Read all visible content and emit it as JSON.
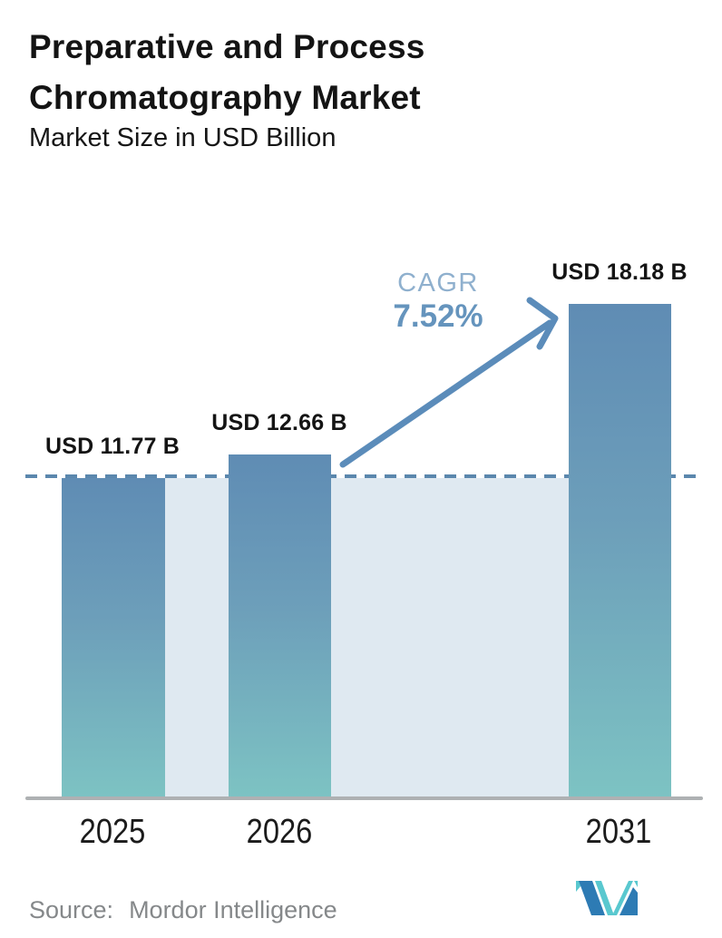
{
  "header": {
    "title_line1": "Preparative and Process",
    "title_line2": "Chromatography Market",
    "subtitle": "Market Size in USD Billion"
  },
  "chart_data": {
    "type": "bar",
    "title": "Preparative and Process Chromatography Market",
    "subtitle": "Market Size in USD Billion",
    "categories": [
      "2025",
      "2026",
      "2031"
    ],
    "values": [
      11.77,
      12.66,
      18.18
    ],
    "value_labels": [
      "USD 11.77 B",
      "USD 12.66 B",
      "USD 18.18 B"
    ],
    "unit": "USD Billion",
    "cagr_label": "CAGR",
    "cagr_value": "7.52%",
    "dashed_reference_value": 11.77,
    "ylim": [
      0,
      18.3
    ],
    "grid": "off",
    "legend": "none",
    "annotations": [
      "dashed horizontal reference line at first-year value",
      "growth arrow from 2026 bar to 2031 bar"
    ],
    "colors": {
      "bar_gradient_top": "#5f8cb4",
      "bar_gradient_bottom": "#7dc3c3",
      "plot_background_band": "#dfe9f1",
      "dashed_line": "#5b87ad",
      "arrow": "#5b8cba",
      "cagr_label_text": "#8fb0ce",
      "cagr_value_text": "#6594bd",
      "axis_line": "#aeb1b3",
      "label_text": "#141414",
      "source_text": "#85888a",
      "logo_blue": "#2d7bb4",
      "logo_teal": "#59c8cf"
    }
  },
  "footer": {
    "source_label": "Source:",
    "source_value": "Mordor Intelligence",
    "logo_name": "mordor-intelligence-logo"
  }
}
